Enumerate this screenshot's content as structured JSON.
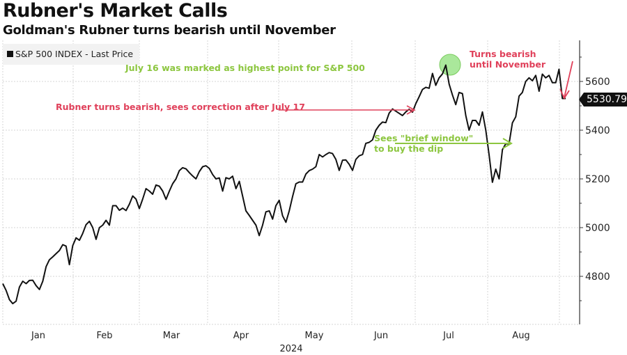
{
  "header": {
    "title": "Rubner's Market Calls",
    "subtitle": "Goldman's Rubner turns bearish until November"
  },
  "chart_data": {
    "type": "line",
    "title": "Rubner's Market Calls",
    "subtitle": "Goldman's Rubner turns bearish until November",
    "legend": {
      "label": "S&P 500 INDEX - Last Price",
      "placement": "top-left"
    },
    "xlabel": "2024",
    "ylabel": "",
    "ylim": [
      4600,
      5780
    ],
    "yticks": [
      4800,
      5000,
      5200,
      5400,
      5600
    ],
    "ytick_labels": [
      "4800",
      "5000",
      "5200",
      "5400",
      "5600"
    ],
    "xticks": [
      "Jan",
      "Feb",
      "Mar",
      "Apr",
      "May",
      "Jun",
      "Jul",
      "Aug"
    ],
    "x_year_label": "2024",
    "grid": true,
    "last_price": "5530.79",
    "line_color": "#111111",
    "series": [
      {
        "name": "S&P 500 INDEX - Last Price",
        "values": [
          4770,
          4742,
          4704,
          4688,
          4698,
          4756,
          4780,
          4770,
          4783,
          4784,
          4762,
          4746,
          4780,
          4840,
          4868,
          4880,
          4893,
          4906,
          4930,
          4924,
          4848,
          4926,
          4958,
          4948,
          4976,
          5012,
          5026,
          5000,
          4952,
          5000,
          5010,
          5030,
          5010,
          5090,
          5090,
          5071,
          5080,
          5070,
          5096,
          5130,
          5117,
          5078,
          5117,
          5160,
          5150,
          5137,
          5175,
          5170,
          5150,
          5116,
          5150,
          5180,
          5200,
          5234,
          5246,
          5241,
          5226,
          5212,
          5200,
          5230,
          5250,
          5254,
          5243,
          5218,
          5200,
          5204,
          5150,
          5205,
          5200,
          5211,
          5160,
          5190,
          5130,
          5069,
          5050,
          5030,
          5010,
          4967,
          5010,
          5065,
          5069,
          5035,
          5090,
          5112,
          5049,
          5022,
          5069,
          5128,
          5180,
          5187,
          5187,
          5220,
          5234,
          5240,
          5250,
          5300,
          5290,
          5300,
          5308,
          5304,
          5280,
          5235,
          5277,
          5278,
          5260,
          5235,
          5280,
          5295,
          5300,
          5346,
          5350,
          5360,
          5400,
          5420,
          5433,
          5431,
          5470,
          5487,
          5478,
          5469,
          5460,
          5475,
          5486,
          5474,
          5509,
          5537,
          5567,
          5576,
          5572,
          5633,
          5584,
          5615,
          5631,
          5667,
          5589,
          5545,
          5505,
          5555,
          5550,
          5460,
          5400,
          5440,
          5440,
          5420,
          5475,
          5400,
          5300,
          5186,
          5240,
          5200,
          5320,
          5344,
          5344,
          5430,
          5455,
          5540,
          5555,
          5600,
          5615,
          5603,
          5625,
          5560,
          5630,
          5615,
          5625,
          5595,
          5595,
          5650,
          5530,
          5530
        ]
      }
    ],
    "annotations": [
      {
        "text": "July 16 was marked as highest point for S&P 500",
        "color": "#8cc63f"
      },
      {
        "text": "Rubner turns bearish, sees correction after July 17",
        "color": "#e0405a"
      },
      {
        "text": "Sees \"brief window\"",
        "color": "#8cc63f"
      },
      {
        "text": "to buy the dip",
        "color": "#8cc63f"
      },
      {
        "text": "Turns bearish",
        "color": "#e0405a"
      },
      {
        "text": "until November",
        "color": "#e0405a"
      }
    ],
    "colors": {
      "green": "#8cc63f",
      "red": "#e0405a",
      "grid": "#d0d0d0"
    }
  }
}
